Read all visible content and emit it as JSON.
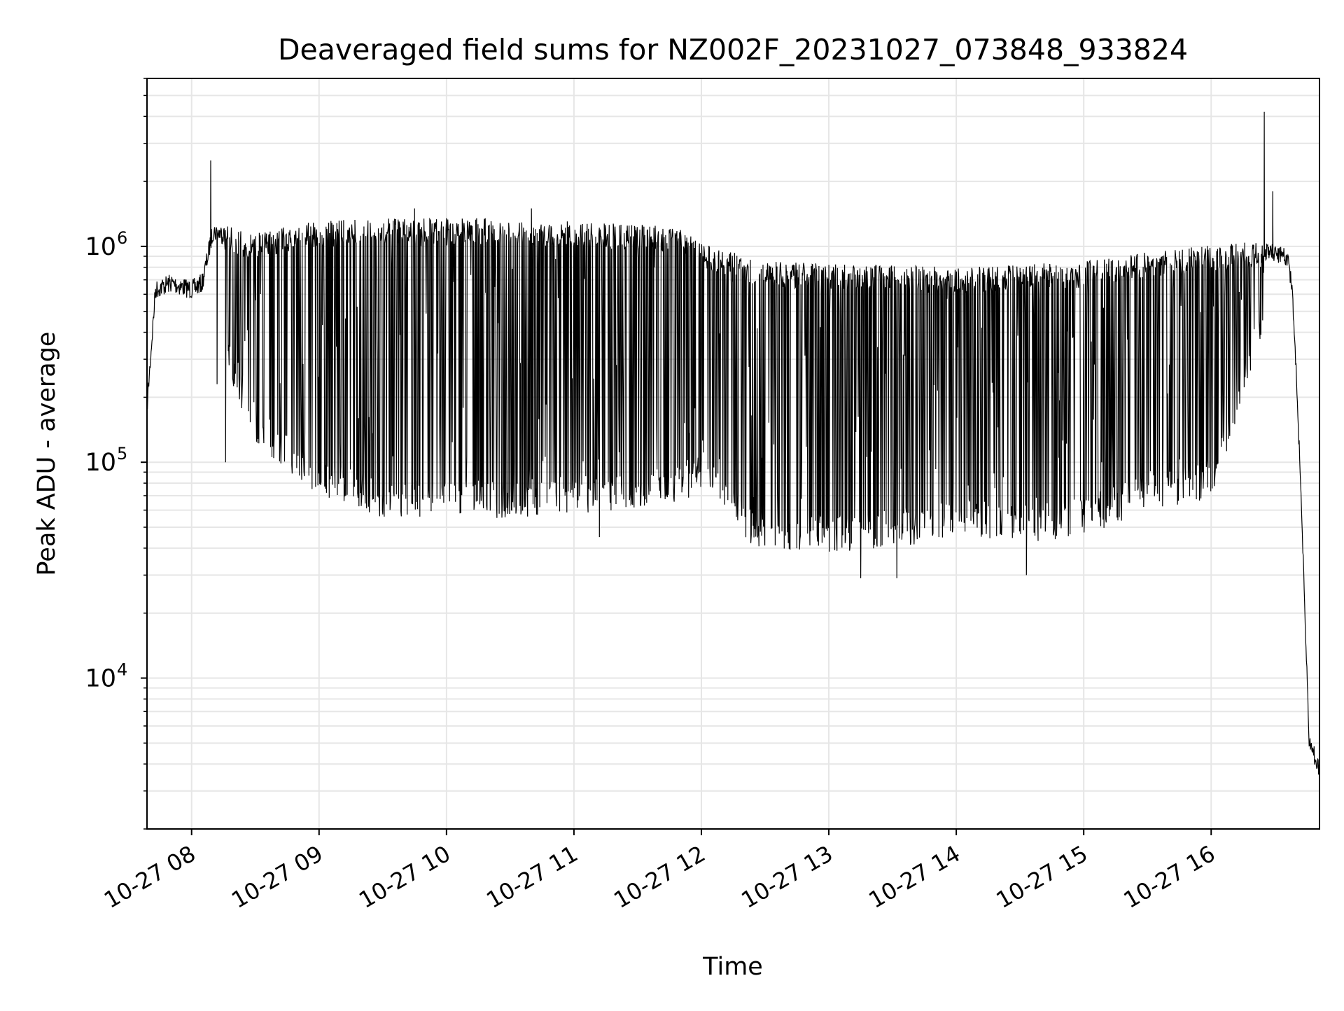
{
  "chart_data": {
    "type": "line",
    "title": "Deaveraged field sums for NZ002F_20231027_073848_933824",
    "xlabel": "Time",
    "ylabel": "Peak ADU - average",
    "x_axis": {
      "type": "time",
      "date": "2023-10-27",
      "range": [
        "07:39",
        "16:51"
      ],
      "tick_labels": [
        "10-27 08",
        "10-27 09",
        "10-27 10",
        "10-27 11",
        "10-27 12",
        "10-27 13",
        "10-27 14",
        "10-27 15",
        "10-27 16"
      ]
    },
    "y_axis": {
      "scale": "log",
      "range": [
        2000,
        6000000
      ],
      "tick_labels": [
        {
          "value": 10000,
          "base": "10",
          "exp": "4"
        },
        {
          "value": 100000,
          "base": "10",
          "exp": "5"
        },
        {
          "value": 1000000,
          "base": "10",
          "exp": "6"
        }
      ]
    },
    "grid": true,
    "line_color": "#000000",
    "series": [
      {
        "style": "rapid oscillation between upper envelope and lower dips",
        "upper_envelope": [
          {
            "t": "07:39",
            "value": 200000
          },
          {
            "t": "07:43",
            "value": 700000
          },
          {
            "t": "07:50",
            "value": 750000
          },
          {
            "t": "08:00",
            "value": 700000
          },
          {
            "t": "08:05",
            "value": 750000
          },
          {
            "t": "08:10",
            "value": 1300000
          },
          {
            "t": "08:30",
            "value": 1150000
          },
          {
            "t": "08:55",
            "value": 1300000
          },
          {
            "t": "09:30",
            "value": 1350000
          },
          {
            "t": "10:30",
            "value": 1350000
          },
          {
            "t": "11:00",
            "value": 1300000
          },
          {
            "t": "11:50",
            "value": 1250000
          },
          {
            "t": "12:05",
            "value": 1000000
          },
          {
            "t": "12:30",
            "value": 850000
          },
          {
            "t": "14:00",
            "value": 800000
          },
          {
            "t": "15:00",
            "value": 850000
          },
          {
            "t": "15:30",
            "value": 950000
          },
          {
            "t": "16:20",
            "value": 1050000
          },
          {
            "t": "16:36",
            "value": 1000000
          },
          {
            "t": "16:38",
            "value": 700000
          },
          {
            "t": "16:40",
            "value": 300000
          },
          {
            "t": "16:43",
            "value": 50000
          },
          {
            "t": "16:46",
            "value": 6000
          },
          {
            "t": "16:51",
            "value": 4000
          }
        ],
        "lower_envelope": [
          {
            "t": "08:15",
            "value": 300000
          },
          {
            "t": "08:30",
            "value": 120000
          },
          {
            "t": "09:00",
            "value": 70000
          },
          {
            "t": "09:30",
            "value": 55000
          },
          {
            "t": "10:30",
            "value": 55000
          },
          {
            "t": "11:00",
            "value": 58000
          },
          {
            "t": "11:30",
            "value": 60000
          },
          {
            "t": "12:00",
            "value": 70000
          },
          {
            "t": "12:25",
            "value": 40000
          },
          {
            "t": "13:00",
            "value": 38000
          },
          {
            "t": "13:30",
            "value": 40000
          },
          {
            "t": "14:00",
            "value": 45000
          },
          {
            "t": "14:30",
            "value": 42000
          },
          {
            "t": "15:00",
            "value": 45000
          },
          {
            "t": "15:30",
            "value": 60000
          },
          {
            "t": "16:00",
            "value": 65000
          },
          {
            "t": "16:15",
            "value": 200000
          },
          {
            "t": "16:25",
            "value": 400000
          }
        ],
        "spikes": [
          {
            "t": "08:09",
            "value": 2500000
          },
          {
            "t": "08:12",
            "value": 230000
          },
          {
            "t": "08:16",
            "value": 100000
          },
          {
            "t": "09:45",
            "value": 1500000
          },
          {
            "t": "10:40",
            "value": 1500000
          },
          {
            "t": "11:12",
            "value": 45000
          },
          {
            "t": "13:15",
            "value": 29000
          },
          {
            "t": "13:32",
            "value": 29000
          },
          {
            "t": "14:33",
            "value": 30000
          },
          {
            "t": "16:25",
            "value": 4200000
          },
          {
            "t": "16:29",
            "value": 1800000
          }
        ]
      }
    ]
  }
}
